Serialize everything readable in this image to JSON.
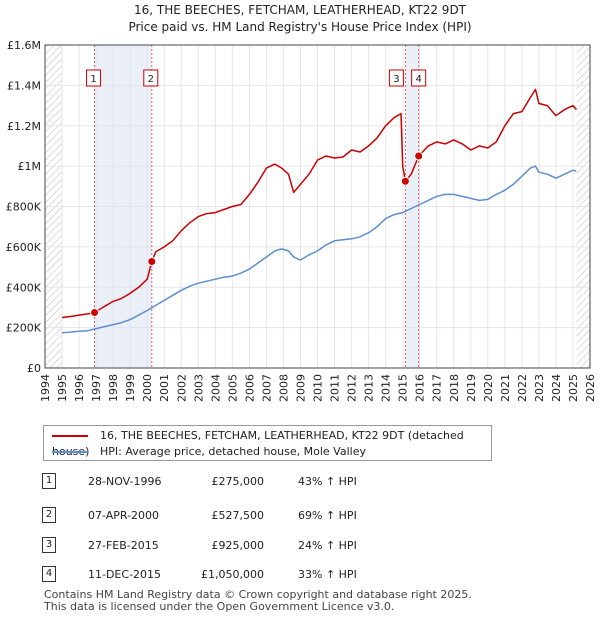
{
  "title_line1": "16, THE BEECHES, FETCHAM, LEATHERHEAD, KT22 9DT",
  "title_line2": "Price paid vs. HM Land Registry's House Price Index (HPI)",
  "legend": {
    "property_label": "16, THE BEECHES, FETCHAM, LEATHERHEAD, KT22 9DT (detached house)",
    "hpi_label": "HPI: Average price, detached house, Mole Valley"
  },
  "sales": [
    {
      "num": "1",
      "date": "28-NOV-1996",
      "price": "£275,000",
      "hpi": "43% ↑ HPI"
    },
    {
      "num": "2",
      "date": "07-APR-2000",
      "price": "£527,500",
      "hpi": "69% ↑ HPI"
    },
    {
      "num": "3",
      "date": "27-FEB-2015",
      "price": "£925,000",
      "hpi": "24% ↑ HPI"
    },
    {
      "num": "4",
      "date": "11-DEC-2015",
      "price": "£1,050,000",
      "hpi": "33% ↑ HPI"
    }
  ],
  "footer_line1": "Contains HM Land Registry data © Crown copyright and database right 2025.",
  "footer_line2": "This data is licensed under the Open Government Licence v3.0.",
  "chart_data": {
    "type": "line",
    "title": "16, THE BEECHES, FETCHAM, LEATHERHEAD, KT22 9DT",
    "subtitle": "Price paid vs. HM Land Registry's House Price Index (HPI)",
    "xlabel": "",
    "ylabel": "",
    "xlim": [
      1994,
      2026
    ],
    "ylim": [
      0,
      1600000
    ],
    "x_ticks": [
      1994,
      1995,
      1996,
      1997,
      1998,
      1999,
      2000,
      2001,
      2002,
      2003,
      2004,
      2005,
      2006,
      2007,
      2008,
      2009,
      2010,
      2011,
      2012,
      2013,
      2014,
      2015,
      2016,
      2017,
      2018,
      2019,
      2020,
      2021,
      2022,
      2023,
      2024,
      2025,
      2026
    ],
    "y_ticks": [
      {
        "value": 0,
        "label": "£0"
      },
      {
        "value": 200000,
        "label": "£200K"
      },
      {
        "value": 400000,
        "label": "£400K"
      },
      {
        "value": 600000,
        "label": "£600K"
      },
      {
        "value": 800000,
        "label": "£800K"
      },
      {
        "value": 1000000,
        "label": "£1M"
      },
      {
        "value": 1200000,
        "label": "£1.2M"
      },
      {
        "value": 1400000,
        "label": "£1.4M"
      },
      {
        "value": 1600000,
        "label": "£1.6M"
      }
    ],
    "grid": true,
    "series": [
      {
        "name": "16, THE BEECHES, FETCHAM, LEATHERHEAD, KT22 9DT (detached house)",
        "color": "#cc0000",
        "x": [
          1995.0,
          1995.5,
          1996.0,
          1996.5,
          1996.91,
          1997.5,
          1998.0,
          1998.5,
          1999.0,
          1999.5,
          2000.0,
          2000.27,
          2000.5,
          2001.0,
          2001.5,
          2002.0,
          2002.5,
          2003.0,
          2003.5,
          2004.0,
          2004.5,
          2005.0,
          2005.5,
          2006.0,
          2006.5,
          2007.0,
          2007.5,
          2007.9,
          2008.3,
          2008.6,
          2009.0,
          2009.5,
          2010.0,
          2010.5,
          2011.0,
          2011.5,
          2012.0,
          2012.5,
          2013.0,
          2013.5,
          2014.0,
          2014.5,
          2014.9,
          2015.0,
          2015.16,
          2015.5,
          2015.94,
          2016.5,
          2017.0,
          2017.5,
          2018.0,
          2018.5,
          2019.0,
          2019.5,
          2020.0,
          2020.5,
          2021.0,
          2021.5,
          2022.0,
          2022.5,
          2022.8,
          2023.0,
          2023.5,
          2024.0,
          2024.5,
          2025.0,
          2025.2
        ],
        "values": [
          250000,
          255000,
          262000,
          268000,
          275000,
          305000,
          330000,
          345000,
          370000,
          400000,
          440000,
          527500,
          575000,
          600000,
          630000,
          680000,
          720000,
          750000,
          765000,
          770000,
          785000,
          800000,
          810000,
          860000,
          920000,
          990000,
          1010000,
          990000,
          960000,
          870000,
          910000,
          960000,
          1030000,
          1050000,
          1040000,
          1045000,
          1080000,
          1070000,
          1100000,
          1140000,
          1200000,
          1240000,
          1260000,
          1000000,
          925000,
          960000,
          1050000,
          1100000,
          1120000,
          1110000,
          1130000,
          1110000,
          1080000,
          1100000,
          1090000,
          1120000,
          1200000,
          1260000,
          1270000,
          1340000,
          1380000,
          1310000,
          1300000,
          1250000,
          1280000,
          1300000,
          1280000
        ]
      },
      {
        "name": "HPI: Average price, detached house, Mole Valley",
        "color": "#5b8fd0",
        "x": [
          1995.0,
          1995.5,
          1996.0,
          1996.5,
          1997.0,
          1997.5,
          1998.0,
          1998.5,
          1999.0,
          1999.5,
          2000.0,
          2000.5,
          2001.0,
          2001.5,
          2002.0,
          2002.5,
          2003.0,
          2003.5,
          2004.0,
          2004.5,
          2005.0,
          2005.5,
          2006.0,
          2006.5,
          2007.0,
          2007.5,
          2007.9,
          2008.3,
          2008.6,
          2009.0,
          2009.5,
          2010.0,
          2010.5,
          2011.0,
          2011.5,
          2012.0,
          2012.5,
          2013.0,
          2013.5,
          2014.0,
          2014.5,
          2015.0,
          2015.5,
          2016.0,
          2016.5,
          2017.0,
          2017.5,
          2018.0,
          2018.5,
          2019.0,
          2019.5,
          2020.0,
          2020.5,
          2021.0,
          2021.5,
          2022.0,
          2022.5,
          2022.8,
          2023.0,
          2023.5,
          2024.0,
          2024.5,
          2025.0,
          2025.2
        ],
        "values": [
          175000,
          178000,
          182000,
          185000,
          195000,
          205000,
          215000,
          225000,
          240000,
          262000,
          285000,
          310000,
          335000,
          360000,
          385000,
          405000,
          420000,
          430000,
          440000,
          450000,
          455000,
          470000,
          490000,
          520000,
          550000,
          580000,
          590000,
          580000,
          550000,
          535000,
          560000,
          580000,
          610000,
          630000,
          635000,
          640000,
          650000,
          670000,
          700000,
          740000,
          760000,
          770000,
          790000,
          810000,
          830000,
          850000,
          860000,
          860000,
          850000,
          840000,
          830000,
          835000,
          860000,
          880000,
          910000,
          950000,
          990000,
          1000000,
          970000,
          960000,
          940000,
          960000,
          980000,
          975000
        ]
      }
    ],
    "sales": [
      {
        "label": "1",
        "x": 1996.91,
        "value": 275000
      },
      {
        "label": "2",
        "x": 2000.27,
        "value": 527500
      },
      {
        "label": "3",
        "x": 2015.16,
        "value": 925000
      },
      {
        "label": "4",
        "x": 2015.94,
        "value": 1050000
      }
    ],
    "legend_position": "below"
  }
}
